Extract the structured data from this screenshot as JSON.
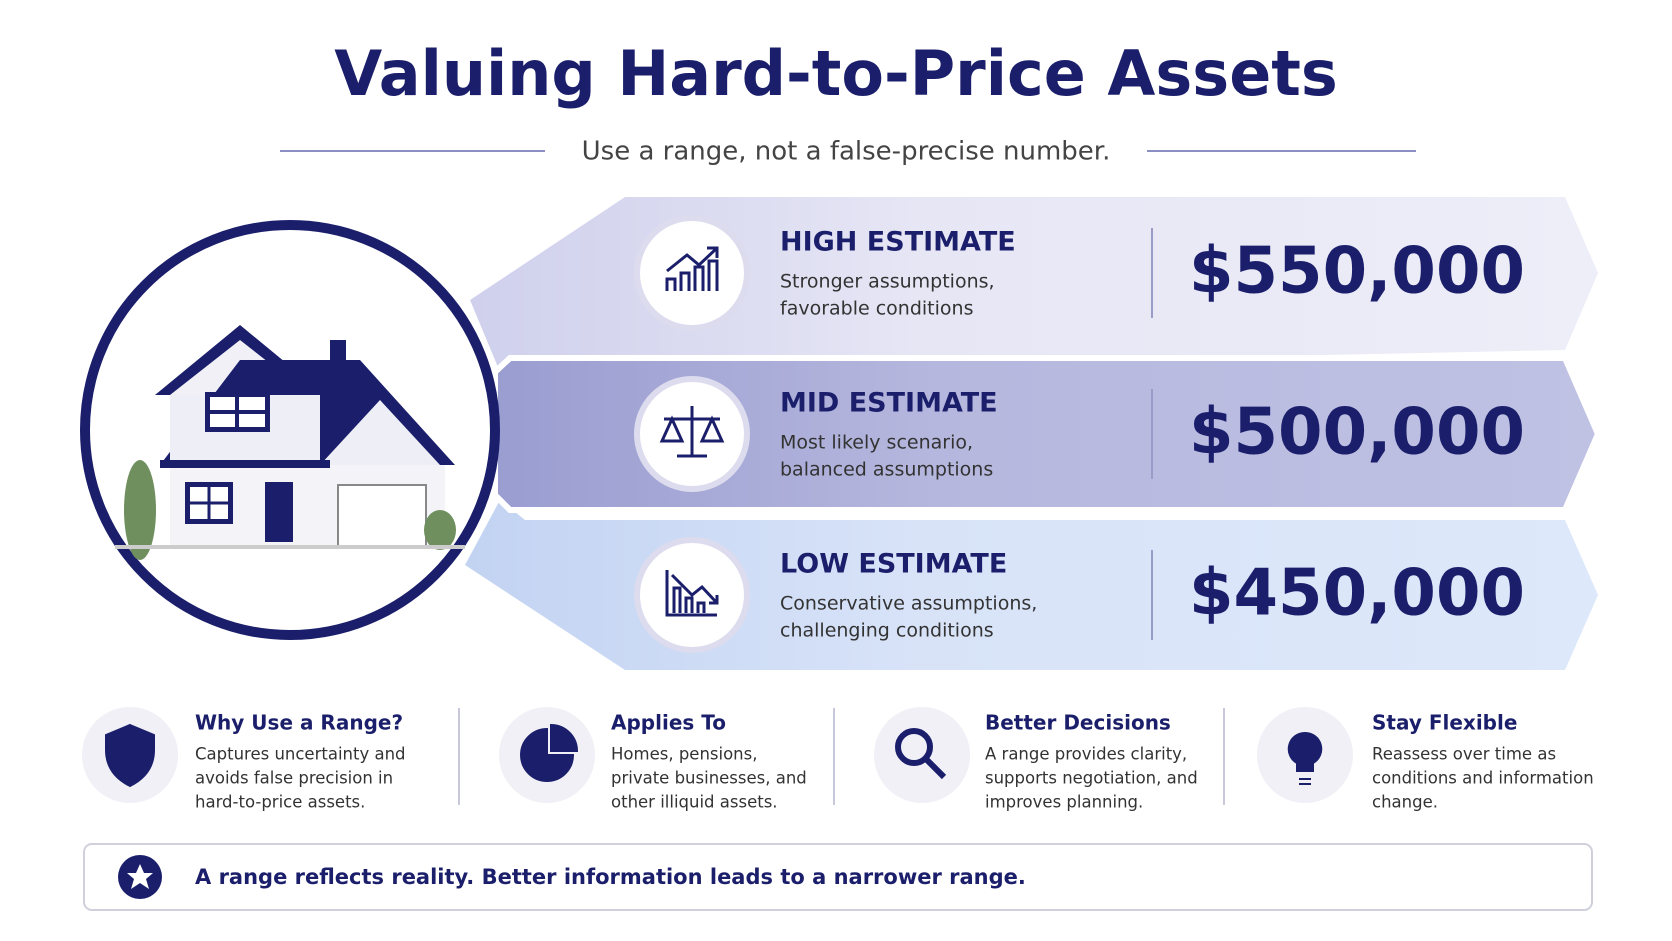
{
  "header": {
    "title": "Valuing Hard-to-Price Assets",
    "subtitle": "Use a range, not a false-precise number."
  },
  "estimates": [
    {
      "label": "HIGH ESTIMATE",
      "description": [
        "Stronger assumptions,",
        "favorable conditions"
      ],
      "value": "$550,000"
    },
    {
      "label": "MID ESTIMATE",
      "description": [
        "Most likely scenario,",
        "balanced assumptions"
      ],
      "value": "$500,000"
    },
    {
      "label": "LOW ESTIMATE",
      "description": [
        "Conservative assumptions,",
        "challenging conditions"
      ],
      "value": "$450,000"
    }
  ],
  "notes": [
    {
      "title": "Why Use a Range?",
      "text": [
        "Captures uncertainty and",
        "avoids false precision in",
        "hard-to-price assets."
      ]
    },
    {
      "title": "Applies To",
      "text": [
        "Homes, pensions,",
        "private businesses, and",
        "other illiquid assets."
      ]
    },
    {
      "title": "Better Decisions",
      "text": [
        "A range provides clarity,",
        "supports negotiation, and",
        "improves planning."
      ]
    },
    {
      "title": "Stay Flexible",
      "text": [
        "Reassess over time as",
        "conditions and information",
        "change."
      ]
    }
  ],
  "footer": "A range reflects reality. Better information leads to a narrower range."
}
